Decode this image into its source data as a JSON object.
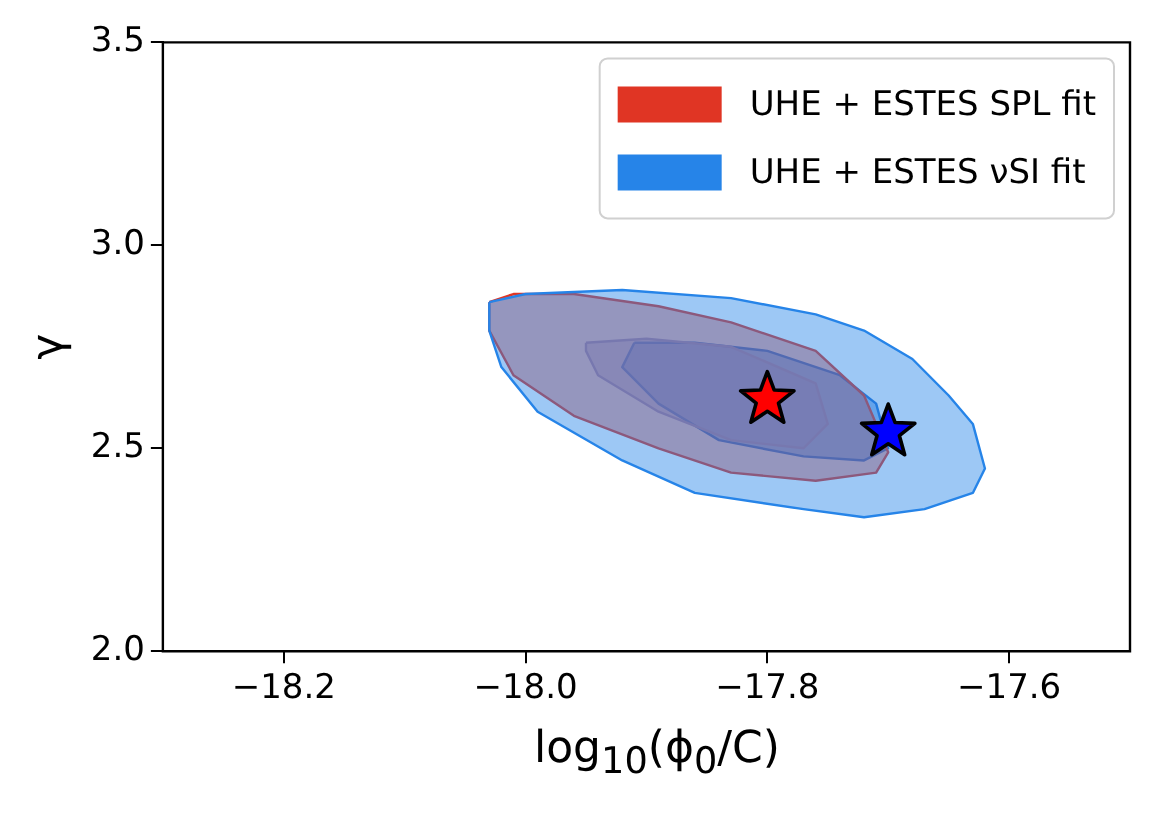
{
  "chart_data": {
    "type": "area",
    "xlabel": "log$_{10}$(ϕ$_{0}$/C)",
    "ylabel": "γ",
    "xlim": [
      -18.3,
      -17.5
    ],
    "ylim": [
      2.0,
      3.5
    ],
    "xticks": [
      {
        "value": -18.2,
        "label": "−18.2"
      },
      {
        "value": -18.0,
        "label": "−18.0"
      },
      {
        "value": -17.8,
        "label": "−17.8"
      },
      {
        "value": -17.6,
        "label": "−17.6"
      }
    ],
    "yticks": [
      {
        "value": 2.0,
        "label": "2.0"
      },
      {
        "value": 2.5,
        "label": "2.5"
      },
      {
        "value": 3.0,
        "label": "3.0"
      },
      {
        "value": 3.5,
        "label": "3.5"
      }
    ],
    "grid": false,
    "legend": "top right",
    "series": [
      {
        "name": "UHE + ESTES νSI fit",
        "color": "#2684e8",
        "x": [
          -18.03,
          -18.0,
          -17.92,
          -17.83,
          -17.76,
          -17.72,
          -17.68,
          -17.65,
          -17.63,
          -17.62,
          -17.63,
          -17.67,
          -17.72,
          -17.77,
          -17.86,
          -17.92,
          -17.99,
          -18.02,
          -18.03
        ],
        "values": [
          2.86,
          2.88,
          2.89,
          2.87,
          2.83,
          2.79,
          2.72,
          2.63,
          2.56,
          2.45,
          2.39,
          2.35,
          2.33,
          2.35,
          2.39,
          2.47,
          2.59,
          2.7,
          2.79
        ]
      },
      {
        "name": "UHE + ESTES SPL fit",
        "color": "#e03524",
        "x": [
          -18.03,
          -18.01,
          -17.96,
          -17.89,
          -17.83,
          -17.76,
          -17.72,
          -17.7,
          -17.71,
          -17.76,
          -17.83,
          -17.89,
          -17.96,
          -18.01,
          -18.03
        ],
        "values": [
          2.86,
          2.88,
          2.88,
          2.85,
          2.81,
          2.74,
          2.63,
          2.49,
          2.44,
          2.42,
          2.44,
          2.5,
          2.58,
          2.68,
          2.79
        ]
      },
      {
        "color": "#9d9ccc",
        "x": [
          -17.95,
          -17.9,
          -17.83,
          -17.76,
          -17.75,
          -17.77,
          -17.83,
          -17.89,
          -17.94,
          -17.95
        ],
        "values": [
          2.76,
          2.77,
          2.75,
          2.66,
          2.56,
          2.5,
          2.52,
          2.59,
          2.68,
          2.74
        ]
      },
      {
        "color": "#1f6fd6",
        "x": [
          -17.91,
          -17.86,
          -17.8,
          -17.74,
          -17.71,
          -17.7,
          -17.72,
          -17.77,
          -17.84,
          -17.89,
          -17.92
        ],
        "values": [
          2.76,
          2.76,
          2.74,
          2.68,
          2.61,
          2.5,
          2.47,
          2.48,
          2.52,
          2.61,
          2.7
        ]
      },
      {
        "type": "scatter",
        "marker": "star",
        "color": "#ff0000",
        "x": [
          -17.8
        ],
        "values": [
          2.62
        ]
      },
      {
        "type": "scatter",
        "marker": "star",
        "color": "#0000ff",
        "x": [
          -17.7
        ],
        "values": [
          2.54
        ]
      }
    ]
  }
}
